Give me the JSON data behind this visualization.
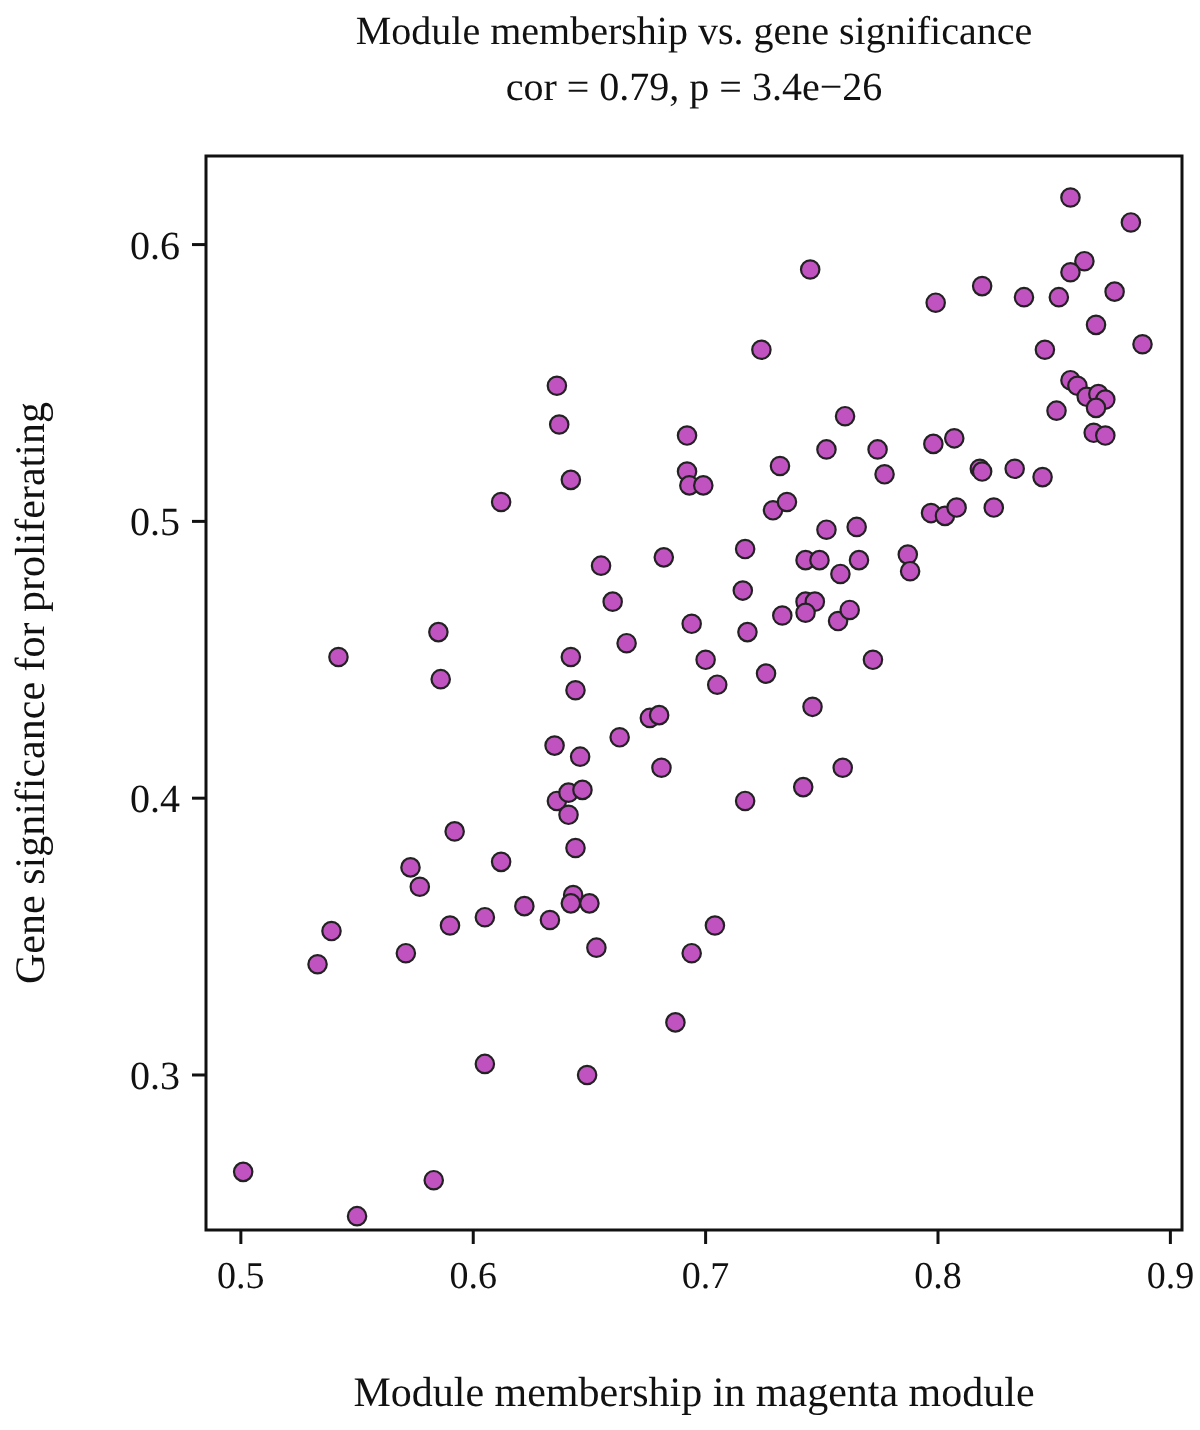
{
  "chart_data": {
    "type": "scatter",
    "title": "Module membership vs. gene significance",
    "subtitle": "cor = 0.79, p = 3.4e−26",
    "xlabel": "Module membership in magenta module",
    "ylabel": "Gene significance for proliferating",
    "xlim": [
      0.485,
      0.905
    ],
    "ylim": [
      0.244,
      0.632
    ],
    "xticks": [
      0.5,
      0.6,
      0.7,
      0.8,
      0.9
    ],
    "yticks": [
      0.3,
      0.4,
      0.5,
      0.6
    ],
    "marker": "circle",
    "grid": false,
    "series": [
      {
        "color": "#c153c1",
        "x": [
          0.857,
          0.883,
          0.745,
          0.863,
          0.857,
          0.819,
          0.799,
          0.837,
          0.852,
          0.876,
          0.868,
          0.724,
          0.888,
          0.846,
          0.857,
          0.86,
          0.864,
          0.869,
          0.872,
          0.868,
          0.851,
          0.867,
          0.872,
          0.76,
          0.798,
          0.807,
          0.752,
          0.774,
          0.732,
          0.777,
          0.818,
          0.819,
          0.833,
          0.845,
          0.729,
          0.735,
          0.797,
          0.803,
          0.808,
          0.824,
          0.752,
          0.765,
          0.717,
          0.743,
          0.749,
          0.766,
          0.758,
          0.787,
          0.788,
          0.716,
          0.743,
          0.747,
          0.743,
          0.757,
          0.762,
          0.733,
          0.718,
          0.7,
          0.726,
          0.772,
          0.705,
          0.636,
          0.637,
          0.692,
          0.642,
          0.692,
          0.693,
          0.699,
          0.612,
          0.682,
          0.655,
          0.66,
          0.694,
          0.666,
          0.585,
          0.542,
          0.642,
          0.586,
          0.644,
          0.676,
          0.68,
          0.635,
          0.646,
          0.663,
          0.681,
          0.636,
          0.641,
          0.647,
          0.641,
          0.592,
          0.644,
          0.573,
          0.577,
          0.612,
          0.539,
          0.533,
          0.571,
          0.59,
          0.605,
          0.622,
          0.633,
          0.643,
          0.642,
          0.65,
          0.653,
          0.694,
          0.687,
          0.605,
          0.649,
          0.501,
          0.583,
          0.55,
          0.704,
          0.746,
          0.759,
          0.742,
          0.717
        ],
        "values": [
          0.617,
          0.608,
          0.591,
          0.594,
          0.59,
          0.585,
          0.579,
          0.581,
          0.581,
          0.583,
          0.571,
          0.562,
          0.564,
          0.562,
          0.551,
          0.549,
          0.545,
          0.546,
          0.544,
          0.541,
          0.54,
          0.532,
          0.531,
          0.538,
          0.528,
          0.53,
          0.526,
          0.526,
          0.52,
          0.517,
          0.519,
          0.518,
          0.519,
          0.516,
          0.504,
          0.507,
          0.503,
          0.502,
          0.505,
          0.505,
          0.497,
          0.498,
          0.49,
          0.486,
          0.486,
          0.486,
          0.481,
          0.488,
          0.482,
          0.475,
          0.471,
          0.471,
          0.467,
          0.464,
          0.468,
          0.466,
          0.46,
          0.45,
          0.445,
          0.45,
          0.441,
          0.549,
          0.535,
          0.531,
          0.515,
          0.518,
          0.513,
          0.513,
          0.507,
          0.487,
          0.484,
          0.471,
          0.463,
          0.456,
          0.46,
          0.451,
          0.451,
          0.443,
          0.439,
          0.429,
          0.43,
          0.419,
          0.415,
          0.422,
          0.411,
          0.399,
          0.402,
          0.403,
          0.394,
          0.388,
          0.382,
          0.375,
          0.368,
          0.377,
          0.352,
          0.34,
          0.344,
          0.354,
          0.357,
          0.361,
          0.356,
          0.365,
          0.362,
          0.362,
          0.346,
          0.344,
          0.319,
          0.304,
          0.3,
          0.265,
          0.262,
          0.249,
          0.354,
          0.433,
          0.411,
          0.404,
          0.399
        ]
      }
    ]
  }
}
